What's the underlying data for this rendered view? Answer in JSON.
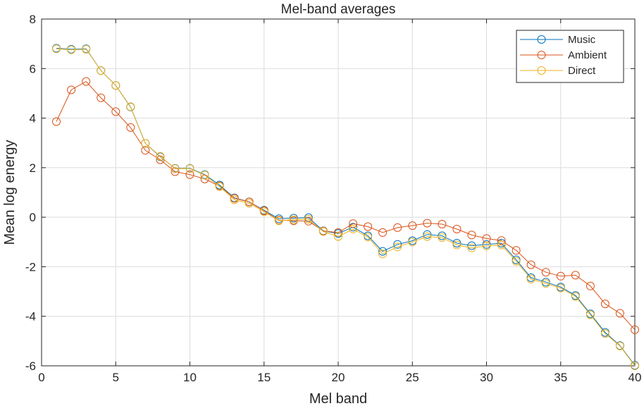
{
  "chart_data": {
    "type": "line",
    "title": "Mel-band averages",
    "xlabel": "Mel band",
    "ylabel": "Mean log energy",
    "xlim": [
      0,
      40
    ],
    "ylim": [
      -6,
      8
    ],
    "xticks": [
      0,
      5,
      10,
      15,
      20,
      25,
      30,
      35,
      40
    ],
    "yticks": [
      -6,
      -4,
      -2,
      0,
      2,
      4,
      6,
      8
    ],
    "grid": true,
    "legend_position": "top-right",
    "marker": "circle",
    "x": [
      1,
      2,
      3,
      4,
      5,
      6,
      7,
      8,
      9,
      10,
      11,
      12,
      13,
      14,
      15,
      16,
      17,
      18,
      19,
      20,
      21,
      22,
      23,
      24,
      25,
      26,
      27,
      28,
      29,
      30,
      31,
      32,
      33,
      34,
      35,
      36,
      37,
      38,
      39,
      40
    ],
    "series": [
      {
        "name": "Music",
        "color": "#0072BD",
        "values": [
          6.82,
          6.78,
          6.8,
          5.92,
          5.32,
          4.45,
          2.98,
          2.44,
          1.97,
          1.97,
          1.72,
          1.3,
          0.78,
          0.62,
          0.28,
          -0.06,
          -0.04,
          -0.02,
          -0.55,
          -0.66,
          -0.4,
          -0.75,
          -1.38,
          -1.1,
          -0.95,
          -0.7,
          -0.75,
          -1.05,
          -1.15,
          -1.1,
          -1.05,
          -1.72,
          -2.44,
          -2.62,
          -2.82,
          -3.16,
          -3.9,
          -4.65,
          -5.18,
          -5.98
        ]
      },
      {
        "name": "Ambient",
        "color": "#D95319",
        "values": [
          3.86,
          5.14,
          5.48,
          4.82,
          4.26,
          3.62,
          2.7,
          2.32,
          1.84,
          1.72,
          1.54,
          1.26,
          0.76,
          0.62,
          0.26,
          -0.12,
          -0.14,
          -0.16,
          -0.56,
          -0.62,
          -0.26,
          -0.38,
          -0.62,
          -0.42,
          -0.34,
          -0.24,
          -0.28,
          -0.48,
          -0.72,
          -0.86,
          -0.94,
          -1.34,
          -1.92,
          -2.22,
          -2.38,
          -2.34,
          -2.78,
          -3.5,
          -3.88,
          -4.54
        ]
      },
      {
        "name": "Direct",
        "color": "#EDB120",
        "values": [
          6.8,
          6.76,
          6.78,
          5.92,
          5.32,
          4.46,
          2.98,
          2.46,
          1.96,
          1.96,
          1.7,
          1.24,
          0.7,
          0.56,
          0.22,
          -0.14,
          -0.1,
          -0.08,
          -0.58,
          -0.78,
          -0.48,
          -0.8,
          -1.48,
          -1.2,
          -1.0,
          -0.78,
          -0.82,
          -1.12,
          -1.24,
          -1.16,
          -1.12,
          -1.78,
          -2.5,
          -2.68,
          -2.86,
          -3.2,
          -3.94,
          -4.7,
          -5.2,
          -6.0
        ]
      }
    ]
  }
}
